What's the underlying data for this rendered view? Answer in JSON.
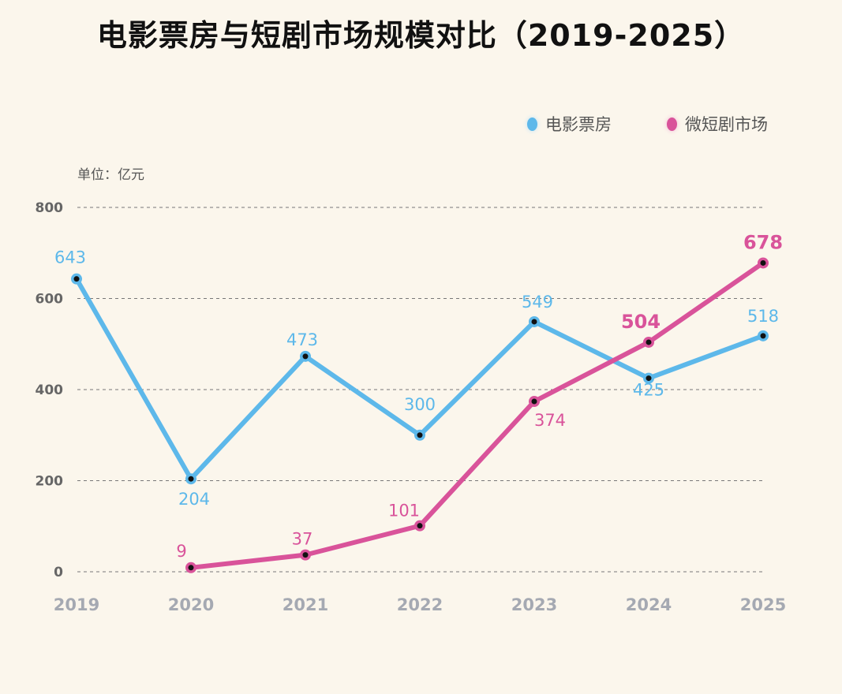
{
  "chart_data": {
    "type": "line",
    "title": "电影票房与短剧市场规模对比（2019-2025）",
    "unit_label": "单位：亿元",
    "categories": [
      "2019",
      "2020",
      "2021",
      "2022",
      "2023",
      "2024",
      "2025"
    ],
    "ylim": [
      0,
      800
    ],
    "yticks": [
      "0",
      "200",
      "400",
      "600",
      "800"
    ],
    "grid": true,
    "legend_position": "top-right",
    "series": [
      {
        "name": "电影票房",
        "color": "#5db8ea",
        "values": [
          643,
          204,
          473,
          300,
          549,
          425,
          518
        ]
      },
      {
        "name": "微短剧市场",
        "color": "#d9539a",
        "values": [
          null,
          9,
          37,
          101,
          374,
          504,
          678
        ]
      }
    ]
  }
}
